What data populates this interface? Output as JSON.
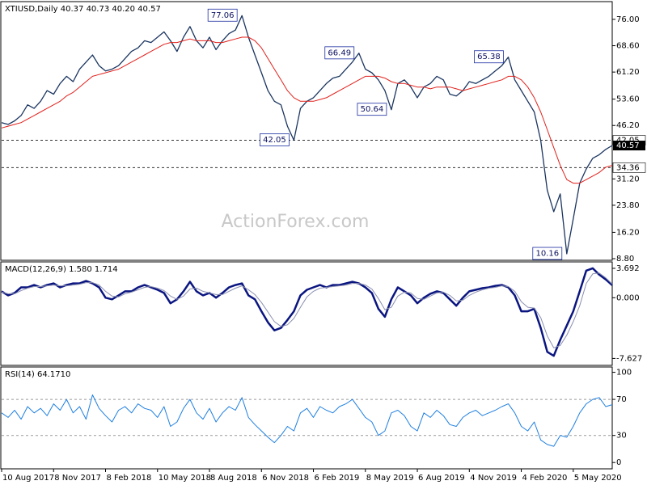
{
  "chart_data": [
    {
      "type": "line",
      "title": "XTIUSD,Daily  40.37 40.73 40.20 40.57",
      "watermark": "ActionForex.com",
      "xlim": [
        0,
        94
      ],
      "xticks": [
        {
          "value": 0,
          "label": "10 Aug 2017"
        },
        {
          "value": 8,
          "label": "8 Nov 2017"
        },
        {
          "value": 16,
          "label": "8 Feb 2018"
        },
        {
          "value": 24,
          "label": "10 May 2018"
        },
        {
          "value": 32,
          "label": "8 Aug 2018"
        },
        {
          "value": 40,
          "label": "6 Nov 2018"
        },
        {
          "value": 48,
          "label": "6 Feb 2019"
        },
        {
          "value": 56,
          "label": "8 May 2019"
        },
        {
          "value": 64,
          "label": "6 Aug 2019"
        },
        {
          "value": 72,
          "label": "4 Nov 2019"
        },
        {
          "value": 80,
          "label": "4 Feb 2020"
        },
        {
          "value": 88,
          "label": "5 May 2020"
        }
      ],
      "ylim": [
        8.35,
        80.3
      ],
      "yticks": [
        {
          "value": 76,
          "label": "76.00"
        },
        {
          "value": 68.6,
          "label": "68.60"
        },
        {
          "value": 61.2,
          "label": "61.20"
        },
        {
          "value": 53.6,
          "label": "53.60"
        },
        {
          "value": 46.2,
          "label": "46.20"
        },
        {
          "value": 31.2,
          "label": "31.20"
        },
        {
          "value": 23.8,
          "label": "23.80"
        },
        {
          "value": 16.2,
          "label": "16.20"
        },
        {
          "value": 8.8,
          "label": "8.80"
        }
      ],
      "hlines": [
        42.05,
        34.36
      ],
      "last_price": 40.57,
      "annotations": [
        {
          "x": 37,
          "y": 77.06
        },
        {
          "x": 55,
          "y": 66.49
        },
        {
          "x": 78,
          "y": 65.38
        },
        {
          "x": 60,
          "y": 50.64
        },
        {
          "x": 45,
          "y": 42.05
        },
        {
          "x": 87,
          "y": 10.16
        }
      ],
      "series": [
        {
          "color": "#1b3560",
          "values": [
            47,
            46.5,
            47.5,
            49,
            52,
            51,
            53,
            56,
            55,
            58,
            60,
            58.5,
            62,
            64,
            66,
            63,
            61.5,
            62,
            63,
            65,
            67,
            68,
            70,
            69.5,
            71,
            72.5,
            70,
            67,
            71,
            74,
            70,
            68,
            71,
            67.5,
            70,
            72,
            73,
            77.06,
            71,
            66,
            61,
            56,
            53,
            52,
            46,
            42.05,
            51,
            53,
            54,
            56,
            58,
            59.5,
            60,
            62,
            64,
            66.49,
            62,
            61,
            59,
            56,
            50.64,
            58,
            59,
            57,
            54,
            57,
            58,
            60,
            59,
            55,
            54.5,
            56,
            58.5,
            58,
            59,
            60,
            61.5,
            63,
            65.38,
            59,
            56,
            53,
            50,
            42,
            28,
            22,
            27,
            10.16,
            20,
            30,
            34,
            37,
            38,
            39.5,
            40.57
          ]
        },
        {
          "color": "#e0201b",
          "values": [
            45.5,
            46,
            46.5,
            47,
            48,
            49,
            50,
            51,
            52,
            53,
            54.5,
            55.5,
            57,
            58.5,
            60,
            60.5,
            61,
            61.5,
            62,
            63,
            64,
            65,
            66,
            67,
            68,
            69,
            69.5,
            69.5,
            70,
            70.5,
            70,
            70,
            70,
            69.5,
            69.5,
            70,
            70.5,
            71,
            71,
            70,
            68,
            65,
            62,
            59,
            56,
            54,
            53,
            53,
            53,
            53.5,
            54,
            55,
            56,
            57,
            58,
            59,
            60,
            60,
            60,
            59.5,
            58.5,
            58,
            58,
            57.5,
            57,
            57,
            56.5,
            57,
            57,
            57,
            56.5,
            56,
            56.5,
            57,
            57.5,
            58,
            58.5,
            59,
            60,
            60,
            59,
            57,
            54,
            50,
            45,
            40,
            35,
            31,
            30,
            30,
            31,
            32,
            33,
            34.5,
            35
          ]
        }
      ]
    },
    {
      "type": "line",
      "title": "MACD(12,26,9) 1.580 1.714",
      "ylim": [
        -8.5,
        4.4
      ],
      "yticks": [
        3.692,
        {
          "value": 0,
          "label": "0.000"
        },
        -7.627
      ],
      "series": [
        {
          "color": "#0a1580",
          "values": [
            0.8,
            0.3,
            0.6,
            1.3,
            1.3,
            1.6,
            1.3,
            1.6,
            1.8,
            1.3,
            1.6,
            1.8,
            1.8,
            2.1,
            1.8,
            1.3,
            0,
            -0.2,
            0.3,
            0.8,
            0.8,
            1.3,
            1.6,
            1.3,
            1.0,
            0.6,
            -0.7,
            -0.2,
            0.8,
            2.0,
            0.8,
            0.3,
            0.6,
            0,
            0.6,
            1.3,
            1.6,
            1.8,
            0.3,
            -0.2,
            -1.7,
            -3.1,
            -4.1,
            -3.8,
            -2.8,
            -1.7,
            0.3,
            1.0,
            1.3,
            1.6,
            1.3,
            1.6,
            1.6,
            1.8,
            2.0,
            1.8,
            1.3,
            0.6,
            -1.4,
            -2.4,
            -0.2,
            1.3,
            0.8,
            0.3,
            -0.7,
            0,
            0.5,
            0.8,
            0.6,
            -0.2,
            -1.0,
            0,
            0.8,
            1.0,
            1.2,
            1.3,
            1.5,
            1.6,
            1.3,
            0.3,
            -1.7,
            -1.7,
            -1.4,
            -3.8,
            -6.8,
            -7.3,
            -5.3,
            -3.5,
            -1.7,
            0.8,
            3.4,
            3.7,
            2.9,
            2.3,
            1.58
          ]
        },
        {
          "color": "#8a8fb0",
          "values": [
            0.7,
            0.5,
            0.5,
            0.9,
            1.2,
            1.4,
            1.4,
            1.5,
            1.6,
            1.5,
            1.5,
            1.6,
            1.7,
            1.9,
            1.9,
            1.6,
            0.8,
            0.2,
            0.1,
            0.5,
            0.7,
            1.0,
            1.3,
            1.4,
            1.2,
            0.9,
            0.2,
            -0.2,
            0.2,
            1.1,
            1.2,
            0.8,
            0.6,
            0.4,
            0.4,
            0.8,
            1.2,
            1.5,
            1.0,
            0.4,
            -0.6,
            -1.8,
            -3.0,
            -3.6,
            -3.4,
            -2.6,
            -1.2,
            0.1,
            0.8,
            1.2,
            1.3,
            1.4,
            1.5,
            1.6,
            1.8,
            1.8,
            1.6,
            1.1,
            -0.1,
            -1.5,
            -1.2,
            0.2,
            0.7,
            0.6,
            -0.1,
            -0.2,
            0.2,
            0.6,
            0.7,
            0.3,
            -0.4,
            -0.3,
            0.3,
            0.7,
            1.0,
            1.2,
            1.3,
            1.5,
            1.4,
            0.8,
            -0.5,
            -1.2,
            -1.3,
            -2.5,
            -4.8,
            -6.3,
            -6.0,
            -4.7,
            -3.0,
            -1.0,
            1.8,
            3.0,
            3.1,
            2.5,
            1.714
          ]
        }
      ]
    },
    {
      "type": "line",
      "title": "RSI(14) 64.1710",
      "ylim": [
        -7,
        105
      ],
      "yticks": [
        100,
        70,
        30,
        0
      ],
      "levels": [
        70,
        30
      ],
      "series": [
        {
          "color": "#1e7fe0",
          "values": [
            55,
            50,
            58,
            48,
            62,
            55,
            60,
            52,
            65,
            58,
            70,
            55,
            62,
            48,
            75,
            60,
            52,
            45,
            58,
            62,
            55,
            65,
            60,
            58,
            50,
            62,
            40,
            45,
            60,
            70,
            55,
            48,
            60,
            45,
            55,
            62,
            58,
            72,
            50,
            42,
            35,
            28,
            22,
            30,
            40,
            35,
            55,
            60,
            50,
            62,
            58,
            55,
            62,
            65,
            70,
            60,
            50,
            45,
            30,
            35,
            55,
            58,
            52,
            40,
            35,
            55,
            50,
            58,
            52,
            42,
            40,
            50,
            55,
            58,
            52,
            55,
            58,
            62,
            65,
            55,
            40,
            35,
            45,
            25,
            20,
            18,
            30,
            28,
            40,
            55,
            65,
            70,
            72,
            62,
            64.171
          ]
        }
      ]
    }
  ]
}
